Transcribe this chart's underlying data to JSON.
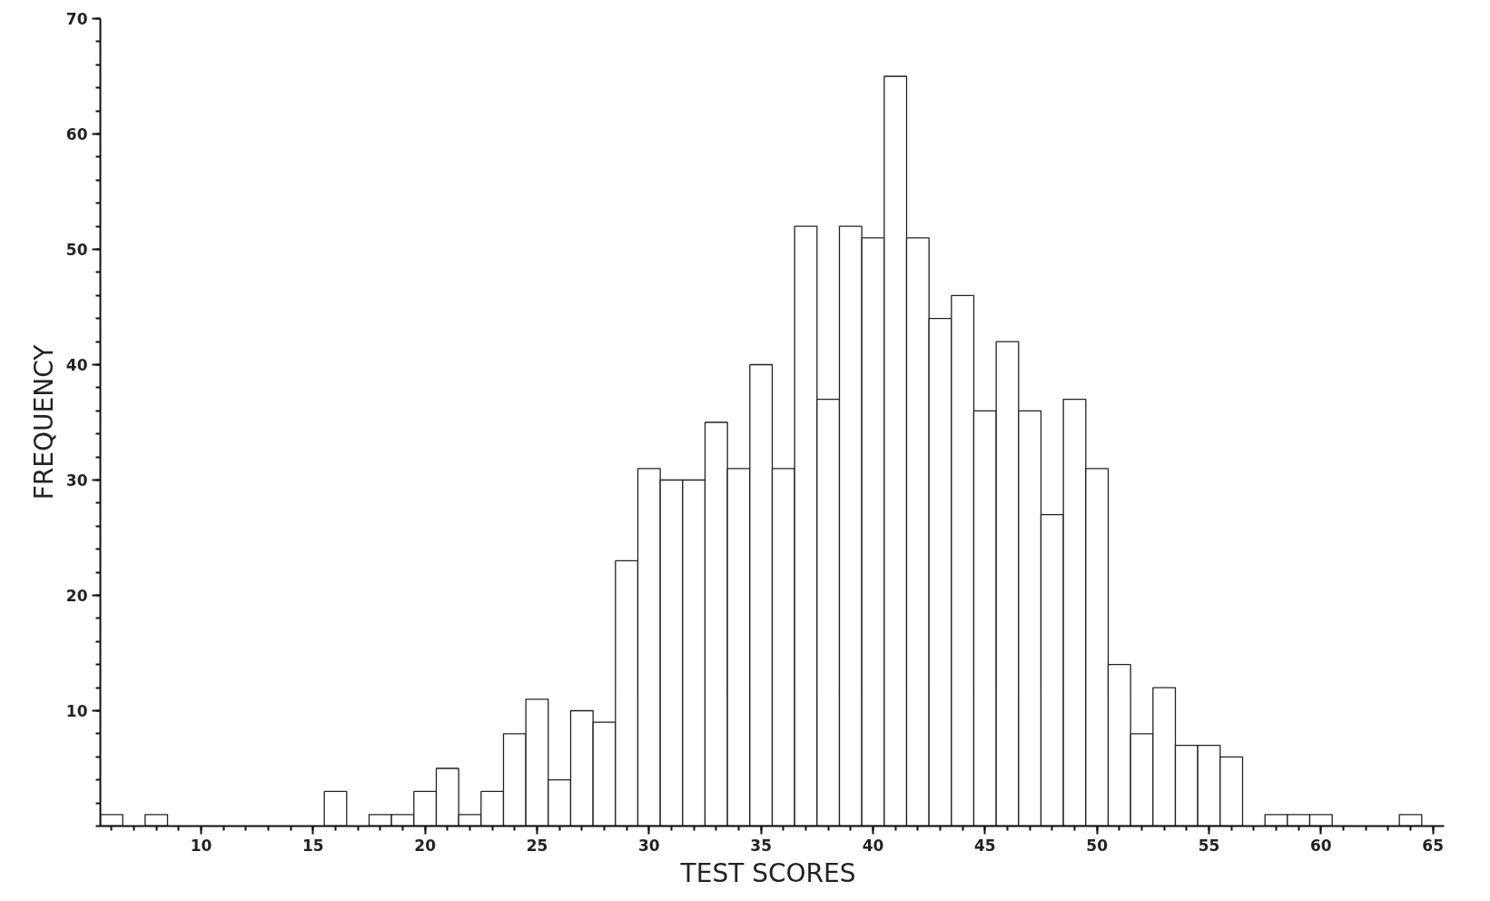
{
  "chart_data": {
    "type": "histogram",
    "xlabel": "TEST  SCORES",
    "ylabel": "FREQUENCY",
    "bins": [
      5.5,
      6.5,
      7.5,
      8.5,
      9.5,
      10.5,
      11.5,
      12.5,
      13.5,
      14.5,
      15.5,
      16.5,
      17.5,
      18.5,
      19.5,
      20.5,
      21.5,
      22.5,
      23.5,
      24.5,
      25.5,
      26.5,
      27.5,
      28.5,
      29.5,
      30.5,
      31.5,
      32.5,
      33.5,
      34.5,
      35.5,
      36.5,
      37.5,
      38.5,
      39.5,
      40.5,
      41.5,
      42.5,
      43.5,
      44.5,
      45.5,
      46.5,
      47.5,
      48.5,
      49.5,
      50.5,
      51.5,
      52.5,
      53.5,
      54.5,
      55.5,
      56.5,
      57.5,
      58.5,
      59.5,
      60.5,
      61.5,
      62.5,
      63.5,
      64.5
    ],
    "values": [
      1,
      0,
      1,
      0,
      0,
      0,
      0,
      0,
      0,
      0,
      3,
      0,
      1,
      1,
      3,
      5,
      1,
      3,
      8,
      11,
      4,
      10,
      9,
      23,
      31,
      30,
      30,
      35,
      31,
      40,
      31,
      52,
      37,
      52,
      51,
      65,
      51,
      44,
      46,
      36,
      42,
      36,
      27,
      37,
      31,
      14,
      8,
      12,
      7,
      7,
      6,
      0,
      1,
      1,
      1,
      0,
      0,
      0,
      1
    ],
    "color": "#ffffff",
    "xlim": [
      5.5,
      65.5
    ],
    "xticks": [
      10,
      15,
      20,
      25,
      30,
      35,
      40,
      45,
      50,
      55,
      60,
      65
    ],
    "ylim": [
      0,
      70
    ],
    "yticks": [
      10,
      20,
      30,
      40,
      50,
      60,
      70
    ],
    "grid": false
  }
}
